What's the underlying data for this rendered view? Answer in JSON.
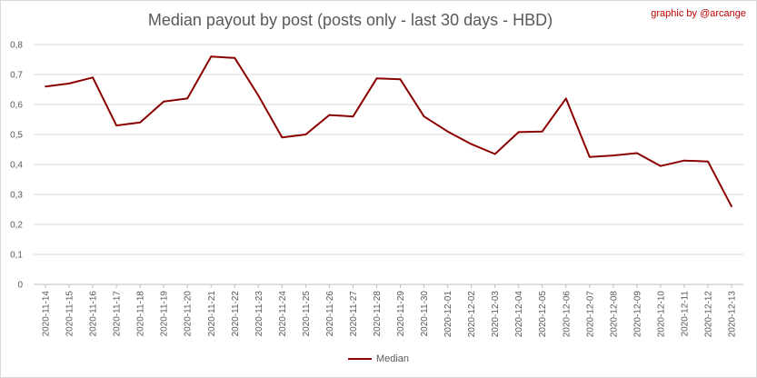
{
  "chart_data": {
    "type": "line",
    "title": "Median payout by post (posts only - last 30 days - HBD)",
    "credit": "graphic by @arcange",
    "categories": [
      "2020-11-14",
      "2020-11-15",
      "2020-11-16",
      "2020-11-17",
      "2020-11-18",
      "2020-11-19",
      "2020-11-20",
      "2020-11-21",
      "2020-11-22",
      "2020-11-23",
      "2020-11-24",
      "2020-11-25",
      "2020-11-26",
      "2020-11-27",
      "2020-11-28",
      "2020-11-29",
      "2020-11-30",
      "2020-12-01",
      "2020-12-02",
      "2020-12-03",
      "2020-12-04",
      "2020-12-05",
      "2020-12-06",
      "2020-12-07",
      "2020-12-08",
      "2020-12-09",
      "2020-12-10",
      "2020-12-11",
      "2020-12-12",
      "2020-12-13"
    ],
    "series": [
      {
        "name": "Median",
        "color": "#8b0000",
        "values": [
          0.66,
          0.67,
          0.69,
          0.53,
          0.54,
          0.61,
          0.62,
          0.76,
          0.755,
          0.63,
          0.49,
          0.5,
          0.565,
          0.56,
          0.687,
          0.684,
          0.56,
          0.51,
          0.468,
          0.435,
          0.508,
          0.51,
          0.62,
          0.425,
          0.43,
          0.438,
          0.395,
          0.413,
          0.41,
          0.26
        ]
      }
    ],
    "ylim": [
      0,
      0.8
    ],
    "yticks": [
      "0",
      "0,1",
      "0,2",
      "0,3",
      "0,4",
      "0,5",
      "0,6",
      "0,7",
      "0,8"
    ],
    "grid": true,
    "legend": "bottom"
  }
}
